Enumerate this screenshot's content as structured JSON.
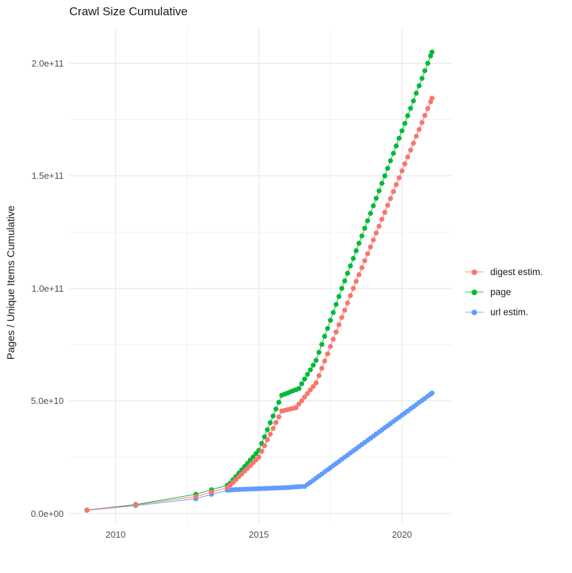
{
  "chart_data": {
    "type": "scatter",
    "title": "Crawl Size Cumulative",
    "xlabel": "",
    "ylabel": "Pages / Unique Items Cumulative",
    "grid": true,
    "legend_position": "right",
    "values_unit": "1e9 pages (values below are in billions)",
    "xlim": [
      2008.38,
      2021.73
    ],
    "ylim_e9": [
      -4.6,
      215.8
    ],
    "x_ticks": {
      "major": [
        2010,
        2015,
        2020
      ],
      "labels": [
        "2010",
        "2015",
        "2020"
      ],
      "minor": [
        2012.5,
        2017.5
      ]
    },
    "y_ticks": {
      "major_e9": [
        0,
        50,
        100,
        150,
        200
      ],
      "labels": [
        "0.0e+00",
        "5.0e+10",
        "1.0e+11",
        "1.5e+11",
        "2.0e+11"
      ],
      "minor_e9": [
        25,
        75,
        125,
        175
      ]
    },
    "series": [
      {
        "name": "digest estim.",
        "color": "#F8766D",
        "points": [
          [
            2009.0,
            1.5
          ],
          [
            2010.7,
            3.8
          ],
          [
            2012.8,
            7.5
          ],
          [
            2013.35,
            9.5
          ],
          [
            2013.9,
            11.5
          ],
          [
            2014.0,
            12.5
          ],
          [
            2014.1,
            13.8
          ],
          [
            2014.2,
            15.0
          ],
          [
            2014.3,
            16.3
          ],
          [
            2014.4,
            17.5
          ],
          [
            2014.5,
            18.8
          ],
          [
            2014.6,
            20.0
          ],
          [
            2014.7,
            21.3
          ],
          [
            2014.8,
            22.5
          ],
          [
            2014.9,
            23.8
          ],
          [
            2015.0,
            25.0
          ],
          [
            2015.1,
            27.6
          ],
          [
            2015.2,
            30.1
          ],
          [
            2015.3,
            32.7
          ],
          [
            2015.4,
            35.2
          ],
          [
            2015.5,
            37.8
          ],
          [
            2015.6,
            40.4
          ],
          [
            2015.7,
            42.9
          ],
          [
            2015.8,
            45.5
          ],
          [
            2015.9,
            45.8
          ],
          [
            2016.0,
            46.1
          ],
          [
            2016.1,
            46.4
          ],
          [
            2016.2,
            46.7
          ],
          [
            2016.3,
            47.0
          ],
          [
            2016.4,
            48.6
          ],
          [
            2016.5,
            50.1
          ],
          [
            2016.6,
            51.7
          ],
          [
            2016.7,
            53.3
          ],
          [
            2016.8,
            54.9
          ],
          [
            2016.9,
            56.4
          ],
          [
            2017.0,
            58.0
          ],
          [
            2017.1,
            61.2
          ],
          [
            2017.2,
            64.5
          ],
          [
            2017.3,
            67.7
          ],
          [
            2017.4,
            70.9
          ],
          [
            2017.5,
            74.2
          ],
          [
            2017.6,
            77.4
          ],
          [
            2017.7,
            80.6
          ],
          [
            2017.8,
            83.8
          ],
          [
            2017.9,
            87.1
          ],
          [
            2018.0,
            90.3
          ],
          [
            2018.1,
            93.5
          ],
          [
            2018.2,
            96.8
          ],
          [
            2018.3,
            100.0
          ],
          [
            2018.4,
            103.1
          ],
          [
            2018.5,
            106.1
          ],
          [
            2018.6,
            109.2
          ],
          [
            2018.7,
            112.3
          ],
          [
            2018.8,
            115.4
          ],
          [
            2018.9,
            118.4
          ],
          [
            2019.0,
            121.5
          ],
          [
            2019.1,
            124.6
          ],
          [
            2019.2,
            127.6
          ],
          [
            2019.3,
            130.7
          ],
          [
            2019.4,
            133.8
          ],
          [
            2019.5,
            136.9
          ],
          [
            2019.6,
            139.9
          ],
          [
            2019.7,
            143.0
          ],
          [
            2019.8,
            146.1
          ],
          [
            2019.9,
            149.1
          ],
          [
            2020.0,
            152.2
          ],
          [
            2020.1,
            155.3
          ],
          [
            2020.2,
            158.4
          ],
          [
            2020.3,
            161.4
          ],
          [
            2020.4,
            164.5
          ],
          [
            2020.5,
            167.6
          ],
          [
            2020.6,
            170.6
          ],
          [
            2020.7,
            173.7
          ],
          [
            2020.8,
            176.8
          ],
          [
            2020.9,
            179.9
          ],
          [
            2021.0,
            182.9
          ],
          [
            2021.05,
            184.5
          ]
        ]
      },
      {
        "name": "page",
        "color": "#00BA38",
        "points": [
          [
            2009.0,
            1.5
          ],
          [
            2010.7,
            4.0
          ],
          [
            2012.8,
            8.5
          ],
          [
            2013.35,
            10.5
          ],
          [
            2013.9,
            12.5
          ],
          [
            2014.0,
            13.5
          ],
          [
            2014.1,
            15.0
          ],
          [
            2014.2,
            16.4
          ],
          [
            2014.3,
            17.9
          ],
          [
            2014.4,
            19.3
          ],
          [
            2014.5,
            20.8
          ],
          [
            2014.6,
            22.2
          ],
          [
            2014.7,
            23.7
          ],
          [
            2014.8,
            25.1
          ],
          [
            2014.9,
            26.6
          ],
          [
            2015.0,
            28.0
          ],
          [
            2015.1,
            31.1
          ],
          [
            2015.2,
            34.1
          ],
          [
            2015.3,
            37.2
          ],
          [
            2015.4,
            40.3
          ],
          [
            2015.5,
            43.3
          ],
          [
            2015.6,
            46.4
          ],
          [
            2015.7,
            49.4
          ],
          [
            2015.8,
            52.5
          ],
          [
            2015.9,
            53.0
          ],
          [
            2016.0,
            53.5
          ],
          [
            2016.1,
            54.0
          ],
          [
            2016.2,
            54.5
          ],
          [
            2016.3,
            55.0
          ],
          [
            2016.4,
            55.5
          ],
          [
            2016.5,
            57.6
          ],
          [
            2016.6,
            59.7
          ],
          [
            2016.7,
            61.8
          ],
          [
            2016.8,
            63.8
          ],
          [
            2016.9,
            65.9
          ],
          [
            2017.0,
            68.0
          ],
          [
            2017.1,
            71.6
          ],
          [
            2017.2,
            75.1
          ],
          [
            2017.3,
            78.7
          ],
          [
            2017.4,
            82.2
          ],
          [
            2017.5,
            85.8
          ],
          [
            2017.6,
            89.3
          ],
          [
            2017.7,
            92.9
          ],
          [
            2017.8,
            96.4
          ],
          [
            2017.9,
            100.0
          ],
          [
            2018.0,
            103.3
          ],
          [
            2018.1,
            106.7
          ],
          [
            2018.2,
            110.0
          ],
          [
            2018.3,
            113.3
          ],
          [
            2018.4,
            116.7
          ],
          [
            2018.5,
            120.0
          ],
          [
            2018.6,
            123.3
          ],
          [
            2018.7,
            126.7
          ],
          [
            2018.8,
            130.0
          ],
          [
            2018.9,
            133.3
          ],
          [
            2019.0,
            136.7
          ],
          [
            2019.1,
            140.0
          ],
          [
            2019.2,
            143.3
          ],
          [
            2019.3,
            146.7
          ],
          [
            2019.4,
            150.0
          ],
          [
            2019.5,
            153.3
          ],
          [
            2019.6,
            156.7
          ],
          [
            2019.7,
            160.0
          ],
          [
            2019.8,
            163.3
          ],
          [
            2019.9,
            166.7
          ],
          [
            2020.0,
            170.0
          ],
          [
            2020.1,
            173.3
          ],
          [
            2020.2,
            176.7
          ],
          [
            2020.3,
            180.0
          ],
          [
            2020.4,
            183.3
          ],
          [
            2020.5,
            186.7
          ],
          [
            2020.6,
            190.0
          ],
          [
            2020.7,
            193.3
          ],
          [
            2020.8,
            196.7
          ],
          [
            2020.9,
            200.0
          ],
          [
            2021.0,
            203.3
          ],
          [
            2021.05,
            205.0
          ]
        ]
      },
      {
        "name": "url estim.",
        "color": "#619CFF",
        "points": [
          [
            2009.0,
            1.4
          ],
          [
            2010.7,
            3.5
          ],
          [
            2012.8,
            6.5
          ],
          [
            2013.35,
            8.5
          ],
          [
            2013.9,
            10.3
          ],
          [
            2014.0,
            10.4
          ],
          [
            2014.1,
            10.5
          ],
          [
            2014.2,
            10.6
          ],
          [
            2014.3,
            10.65
          ],
          [
            2014.4,
            10.7
          ],
          [
            2014.5,
            10.75
          ],
          [
            2014.6,
            10.8
          ],
          [
            2014.7,
            10.85
          ],
          [
            2014.8,
            10.9
          ],
          [
            2014.9,
            10.95
          ],
          [
            2015.0,
            11.0
          ],
          [
            2015.1,
            11.05
          ],
          [
            2015.2,
            11.1
          ],
          [
            2015.3,
            11.15
          ],
          [
            2015.4,
            11.2
          ],
          [
            2015.5,
            11.25
          ],
          [
            2015.6,
            11.3
          ],
          [
            2015.7,
            11.35
          ],
          [
            2015.8,
            11.4
          ],
          [
            2015.9,
            11.45
          ],
          [
            2016.0,
            11.5
          ],
          [
            2016.1,
            11.6
          ],
          [
            2016.2,
            11.7
          ],
          [
            2016.3,
            11.8
          ],
          [
            2016.4,
            11.9
          ],
          [
            2016.5,
            11.95
          ],
          [
            2016.6,
            12.0
          ],
          [
            2016.7,
            12.9
          ],
          [
            2016.8,
            13.8
          ],
          [
            2016.9,
            14.7
          ],
          [
            2017.0,
            15.7
          ],
          [
            2017.1,
            16.6
          ],
          [
            2017.2,
            17.5
          ],
          [
            2017.3,
            18.5
          ],
          [
            2017.4,
            19.4
          ],
          [
            2017.5,
            20.3
          ],
          [
            2017.6,
            21.3
          ],
          [
            2017.7,
            22.2
          ],
          [
            2017.8,
            23.1
          ],
          [
            2017.9,
            24.1
          ],
          [
            2018.0,
            25.0
          ],
          [
            2018.1,
            25.9
          ],
          [
            2018.2,
            26.9
          ],
          [
            2018.3,
            27.8
          ],
          [
            2018.4,
            28.7
          ],
          [
            2018.5,
            29.7
          ],
          [
            2018.6,
            30.6
          ],
          [
            2018.7,
            31.5
          ],
          [
            2018.8,
            32.5
          ],
          [
            2018.9,
            33.4
          ],
          [
            2019.0,
            34.3
          ],
          [
            2019.1,
            35.3
          ],
          [
            2019.2,
            36.2
          ],
          [
            2019.3,
            37.1
          ],
          [
            2019.4,
            38.1
          ],
          [
            2019.5,
            39.0
          ],
          [
            2019.6,
            39.9
          ],
          [
            2019.7,
            40.9
          ],
          [
            2019.8,
            41.8
          ],
          [
            2019.9,
            42.7
          ],
          [
            2020.0,
            43.7
          ],
          [
            2020.1,
            44.6
          ],
          [
            2020.2,
            45.5
          ],
          [
            2020.3,
            46.5
          ],
          [
            2020.4,
            47.4
          ],
          [
            2020.5,
            48.3
          ],
          [
            2020.6,
            49.3
          ],
          [
            2020.7,
            50.2
          ],
          [
            2020.8,
            51.1
          ],
          [
            2020.9,
            52.1
          ],
          [
            2021.0,
            53.0
          ],
          [
            2021.05,
            53.5
          ]
        ]
      }
    ],
    "style": {
      "grid_major_color": "#e3e3e3",
      "grid_minor_color": "#f1f1f1",
      "point_radius": 3.6,
      "line_width": 1
    }
  }
}
